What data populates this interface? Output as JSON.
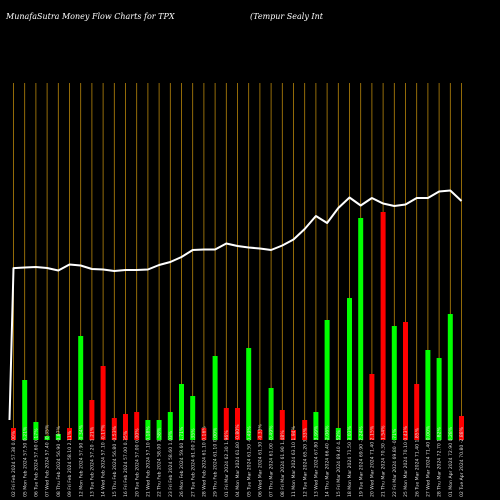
{
  "header": {
    "left": "MunafaSutra  Money Flow  Charts for TPX",
    "right": "(Tempur Sealy Int"
  },
  "colors": {
    "background": "#000000",
    "grid": "#b8860b",
    "up": "#00ff00",
    "down": "#ff0000",
    "price_line": "#ffffff"
  },
  "chart_data": {
    "type": "bar",
    "title": "",
    "xlabel": "",
    "ylabel": "",
    "grid": true,
    "legend": "none",
    "categories": [
      "02 Fri Feb 2024 57.38 0.00%",
      "05 Mon Feb 2024 57.50 0.21%",
      "06 Tue Feb 2024 57.60 0.17%",
      "07 Wed Feb 2024 57.40 -0.35%",
      "08 Thu Feb 2024 56.90 -0.87%",
      "09 Fri Feb 2024 58.10 2.11%",
      "12 Mon Feb 2024 57.90 -0.34%",
      "13 Tue Feb 2024 57.20 -1.21%",
      "14 Wed Feb 2024 57.10 -0.17%",
      "15 Thu Feb 2024 56.80 -0.53%",
      "16 Fri Feb 2024 57.00 0.35%",
      "20 Tue Feb 2024 57.00 0.00%",
      "21 Wed Feb 2024 57.10 0.18%",
      "22 Thu Feb 2024 58.00 1.58%",
      "23 Fri Feb 2024 58.60 1.03%",
      "26 Mon Feb 2024 59.60 1.71%",
      "27 Tue Feb 2024 61.00 2.35%",
      "28 Wed Feb 2024 61.10 0.16%",
      "29 Thu Feb 2024 61.10 0.00%",
      "01 Fri Mar 2024 62.30 1.96%",
      "04 Mon Mar 2024 61.80 -0.80%",
      "05 Tue Mar 2024 61.50 -0.49%",
      "06 Wed Mar 2024 61.30 -0.33%",
      "07 Thu Mar 2024 61.00 -0.49%",
      "08 Fri Mar 2024 61.90 1.48%",
      "11 Mon Mar 2024 63.10 1.94%",
      "12 Tue Mar 2024 65.20 3.33%",
      "13 Wed Mar 2024 67.80 3.99%",
      "14 Thu Mar 2024 66.40 -2.06%",
      "15 Fri Mar 2024 69.40 4.52%",
      "18 Mon Mar 2024 71.50 3.03%",
      "19 Tue Mar 2024 69.90 -2.24%",
      "20 Wed Mar 2024 71.40 2.15%",
      "21 Thu Mar 2024 70.30 -1.54%",
      "22 Fri Mar 2024 69.80 -0.71%",
      "25 Mon Mar 2024 70.10 0.43%",
      "26 Tue Mar 2024 71.40 1.85%",
      "27 Wed Mar 2024 71.40 0.00%",
      "28 Thu Mar 2024 72.70 1.82%",
      "01 Mon Apr 2024 72.90 0.28%",
      "02 Tue Apr 2024 70.80 -2.88%"
    ],
    "series": [
      {
        "kind": "bar",
        "values": [
          6,
          30,
          9,
          2,
          3,
          6,
          52,
          20,
          37,
          11,
          13,
          14,
          10,
          10,
          14,
          28,
          22,
          6,
          42,
          16,
          16,
          46,
          5,
          26,
          15,
          5,
          10,
          14,
          60,
          6,
          71,
          111,
          33,
          114,
          57,
          59,
          28,
          45,
          41,
          63,
          12
        ],
        "colors": [
          "down",
          "up",
          "up",
          "up",
          "up",
          "down",
          "up",
          "down",
          "down",
          "down",
          "down",
          "down",
          "up",
          "up",
          "up",
          "up",
          "up",
          "down",
          "up",
          "down",
          "down",
          "up",
          "down",
          "up",
          "down",
          "down",
          "down",
          "up",
          "up",
          "up",
          "up",
          "up",
          "down",
          "down",
          "up",
          "down",
          "down",
          "up",
          "up",
          "up",
          "down"
        ]
      },
      {
        "kind": "line",
        "values": [
          57.38,
          57.5,
          57.6,
          57.4,
          56.9,
          58.1,
          57.9,
          57.2,
          57.1,
          56.8,
          57.0,
          57.0,
          57.1,
          58.0,
          58.6,
          59.6,
          61.0,
          61.1,
          61.1,
          62.3,
          61.8,
          61.5,
          61.3,
          61.0,
          61.9,
          63.1,
          65.2,
          67.8,
          66.4,
          69.4,
          71.5,
          69.9,
          71.4,
          70.3,
          69.8,
          70.1,
          71.4,
          71.4,
          72.7,
          72.9,
          70.8
        ]
      }
    ]
  }
}
